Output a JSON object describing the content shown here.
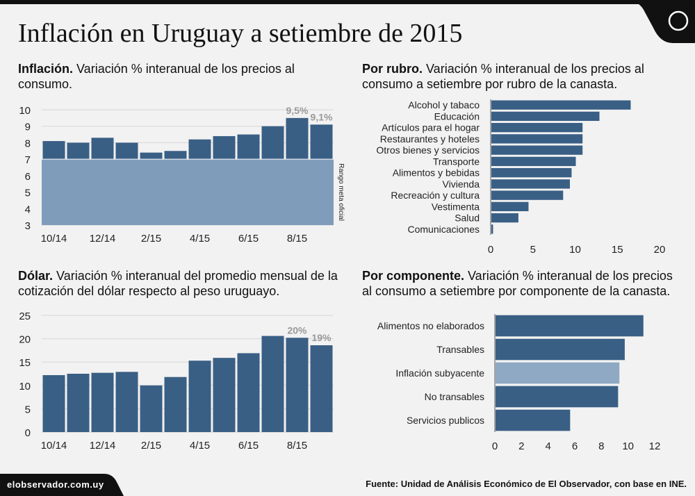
{
  "title": "Inflación en Uruguay a setiembre de 2015",
  "colors": {
    "dark": "#3a5f85",
    "light": "#7f9dba",
    "component_highlight": "#8fa9c4",
    "grid": "#d6d6d6",
    "label": "#9a9a9a"
  },
  "panels": {
    "inflacion": {
      "title_bold": "Inflación.",
      "title_rest": " Variación % interanual de los precios al consumo.",
      "band_label": "Rango meta oficial"
    },
    "rubro": {
      "title_bold": "Por rubro.",
      "title_rest": " Variación % interanual de los precios al consumo a setiembre por rubro de la canasta."
    },
    "dolar": {
      "title_bold": "Dólar.",
      "title_rest": " Variación % interanual del promedio mensual de la cotización del dólar respecto al peso uruguayo."
    },
    "componente": {
      "title_bold": "Por componente.",
      "title_rest": " Variación % interanual de los precios al consumo a setiembre por componente de la canasta."
    }
  },
  "footer": {
    "site": "elobservador.com.uy",
    "source": "Fuente: Unidad de Análisis Económico de El Observador, con base en INE."
  },
  "chart_data": [
    {
      "id": "inflacion",
      "type": "bar",
      "categories": [
        "10/14",
        "11/14",
        "12/14",
        "1/15",
        "2/15",
        "3/15",
        "4/15",
        "5/15",
        "6/15",
        "7/15",
        "8/15",
        "9/15"
      ],
      "x_tick_labels": [
        "10/14",
        "",
        "12/14",
        "",
        "2/15",
        "",
        "4/15",
        "",
        "6/15",
        "",
        "8/15",
        ""
      ],
      "values": [
        8.1,
        8.0,
        8.3,
        8.0,
        7.4,
        7.5,
        8.2,
        8.4,
        8.5,
        9.0,
        9.5,
        9.1
      ],
      "data_labels": [
        "",
        "",
        "",
        "",
        "",
        "",
        "",
        "",
        "",
        "",
        "9,5%",
        "9,1%"
      ],
      "ylim": [
        3,
        10
      ],
      "yticks": [
        3,
        4,
        5,
        6,
        7,
        8,
        9,
        10
      ],
      "band": {
        "from": 3,
        "to": 7,
        "label": "Rango meta oficial"
      },
      "title": "Inflación. Variación % interanual de los precios al consumo."
    },
    {
      "id": "rubro",
      "type": "bar",
      "orientation": "horizontal",
      "categories": [
        "Alcohol y tabaco",
        "Educación",
        "Artículos para el hogar",
        "Restaurantes y hoteles",
        "Otros bienes y servicios",
        "Transporte",
        "Alimentos y bebidas",
        "Vivienda",
        "Recreación y cultura",
        "Vestimenta",
        "Salud",
        "Comunicaciones"
      ],
      "values": [
        16.5,
        12.8,
        10.8,
        10.8,
        10.8,
        10.0,
        9.5,
        9.3,
        8.5,
        4.4,
        3.2,
        0.2
      ],
      "xlim": [
        0,
        20
      ],
      "xticks": [
        0,
        5,
        10,
        15,
        20
      ],
      "title": "Por rubro. Variación % interanual de los precios al consumo a setiembre por rubro de la canasta."
    },
    {
      "id": "dolar",
      "type": "bar",
      "categories": [
        "10/14",
        "11/14",
        "12/14",
        "1/15",
        "2/15",
        "3/15",
        "4/15",
        "5/15",
        "6/15",
        "7/15",
        "8/15",
        "9/15"
      ],
      "x_tick_labels": [
        "10/14",
        "",
        "12/14",
        "",
        "2/15",
        "",
        "4/15",
        "",
        "6/15",
        "",
        "8/15",
        ""
      ],
      "values": [
        12.2,
        12.5,
        12.7,
        12.9,
        10.0,
        11.8,
        15.3,
        15.9,
        16.9,
        20.6,
        20.2,
        18.6
      ],
      "data_labels": [
        "",
        "",
        "",
        "",
        "",
        "",
        "",
        "",
        "",
        "",
        "20%",
        "19%"
      ],
      "ylim": [
        0,
        25
      ],
      "yticks": [
        0,
        5,
        10,
        15,
        20,
        25
      ],
      "title": "Dólar. Variación % interanual del promedio mensual de la cotización del dólar respecto al peso uruguayo."
    },
    {
      "id": "componente",
      "type": "bar",
      "orientation": "horizontal",
      "categories": [
        "Alimentos no elaborados",
        "Transables",
        "Inflación subyacente",
        "No transables",
        "Servicios publicos"
      ],
      "values": [
        11.1,
        9.7,
        9.3,
        9.2,
        5.6
      ],
      "highlight": "Inflación subyacente",
      "xlim": [
        0,
        12
      ],
      "xticks": [
        0,
        2,
        4,
        6,
        8,
        10,
        12
      ],
      "title": "Por componente. Variación % interanual de los precios al consumo a setiembre por componente de la canasta."
    }
  ]
}
